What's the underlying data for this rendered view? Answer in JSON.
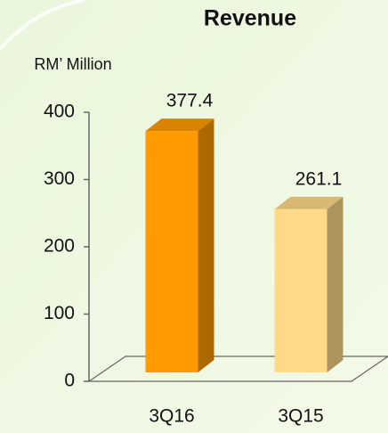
{
  "chart_data": {
    "type": "bar",
    "title": "Revenue",
    "y_label": "RM’ Million",
    "categories": [
      "3Q16",
      "3Q15"
    ],
    "values": [
      377.4,
      261.1
    ],
    "colors": [
      "#ff9a00",
      "#ffd888"
    ],
    "ylim": [
      0,
      400
    ],
    "yticks": [
      0,
      100,
      200,
      300,
      400
    ]
  }
}
